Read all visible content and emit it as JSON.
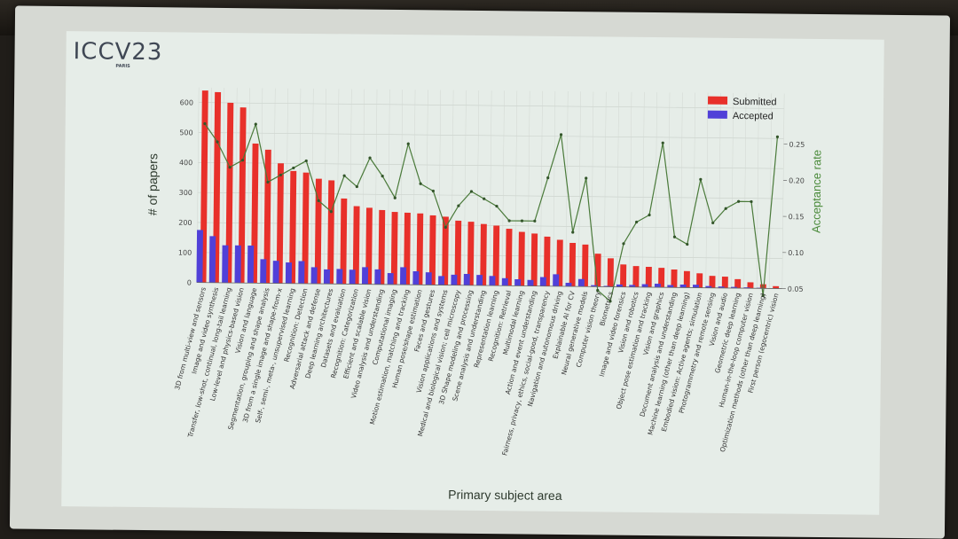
{
  "logo": {
    "main": "ICCV23",
    "sub": "PARIS"
  },
  "chart_data": {
    "type": "bar",
    "title": "",
    "xlabel": "Primary subject area",
    "ylabel": "# of papers",
    "y2label": "Acceptance rate",
    "ylim": [
      0,
      650
    ],
    "y2lim": [
      0.05,
      0.32
    ],
    "yticks": [
      0,
      100,
      200,
      300,
      400,
      500,
      600
    ],
    "y2ticks": [
      0.05,
      0.1,
      0.15,
      0.2,
      0.25
    ],
    "legend": "top-right",
    "grid": true,
    "colors": {
      "submitted": "#e8302a",
      "accepted": "#5040d8",
      "rate": "#4a7a3a"
    },
    "categories": [
      "3D from multi-view and sensors",
      "Image and video synthesis",
      "Transfer, low-shot, continual, long-tail learning",
      "Low-level and physics-based vision",
      "Vision and language",
      "Segmentation, grouping and shape analysis",
      "3D from a single image and shape-from-x",
      "Self-, semi-, meta-, unsupervised learning",
      "Recognition: Detection",
      "Adversarial attack and defense",
      "Deep learning architectures",
      "Datasets and evaluation",
      "Recognition: Categorization",
      "Efficient and scalable vision",
      "Video analysis and understanding",
      "Computational imaging",
      "Motion estimation, matching and tracking",
      "Human pose/shape estimation",
      "Faces and gestures",
      "Vision applications and systems",
      "Medical and biological vision; cell microscopy",
      "3D Shape modeling and processing",
      "Scene analysis and understanding",
      "Representation learning",
      "Recognition: Retrieval",
      "Multimodal learning",
      "Action and event understanding",
      "Fairness, privacy, ethics, social-good, transparency",
      "Navigation and autonomous driving",
      "Explainable AI for CV",
      "Neural generative models",
      "Computer vision theory",
      "Biometrics",
      "Image and video forensics",
      "Vision and robotics",
      "Object pose estimation and tracking",
      "Vision and graphics",
      "Document analysis and understanding",
      "Machine learning (other than deep learning)",
      "Embodied vision: Active agents; simulation",
      "Photogrammetry and remote sensing",
      "Vision and audio",
      "Geometric deep learning",
      "Human-in-the-loop computer vision",
      "Optimization methods (other than deep learning)",
      "First person (egocentric) vision"
    ],
    "series": [
      {
        "name": "Submitted",
        "values": [
          640,
          635,
          600,
          585,
          465,
          445,
          400,
          375,
          370,
          350,
          345,
          285,
          260,
          255,
          248,
          242,
          240,
          238,
          232,
          228,
          215,
          212,
          205,
          200,
          190,
          180,
          175,
          165,
          155,
          145,
          140,
          110,
          95,
          75,
          70,
          68,
          65,
          60,
          55,
          48,
          40,
          38,
          30,
          20,
          14,
          8
        ]
      },
      {
        "name": "Accepted",
        "values": [
          175,
          155,
          125,
          125,
          125,
          80,
          75,
          70,
          75,
          55,
          48,
          50,
          48,
          57,
          50,
          38,
          58,
          45,
          42,
          30,
          35,
          38,
          35,
          32,
          25,
          22,
          20,
          30,
          40,
          12,
          25,
          5,
          3,
          8,
          7,
          10,
          12,
          8,
          10,
          10,
          6,
          5,
          4,
          3,
          2,
          1
        ]
      },
      {
        "name": "Acceptance rate",
        "values": [
          0.27,
          0.245,
          0.21,
          0.22,
          0.27,
          0.19,
          0.2,
          0.21,
          0.22,
          0.165,
          0.15,
          0.2,
          0.185,
          0.225,
          0.2,
          0.17,
          0.245,
          0.19,
          0.18,
          0.13,
          0.16,
          0.18,
          0.17,
          0.16,
          0.14,
          0.14,
          0.14,
          0.2,
          0.26,
          0.125,
          0.2,
          0.045,
          0.03,
          0.11,
          0.14,
          0.15,
          0.25,
          0.12,
          0.11,
          0.2,
          0.14,
          0.16,
          0.17,
          0.17,
          0.04,
          0.26
        ]
      }
    ]
  }
}
